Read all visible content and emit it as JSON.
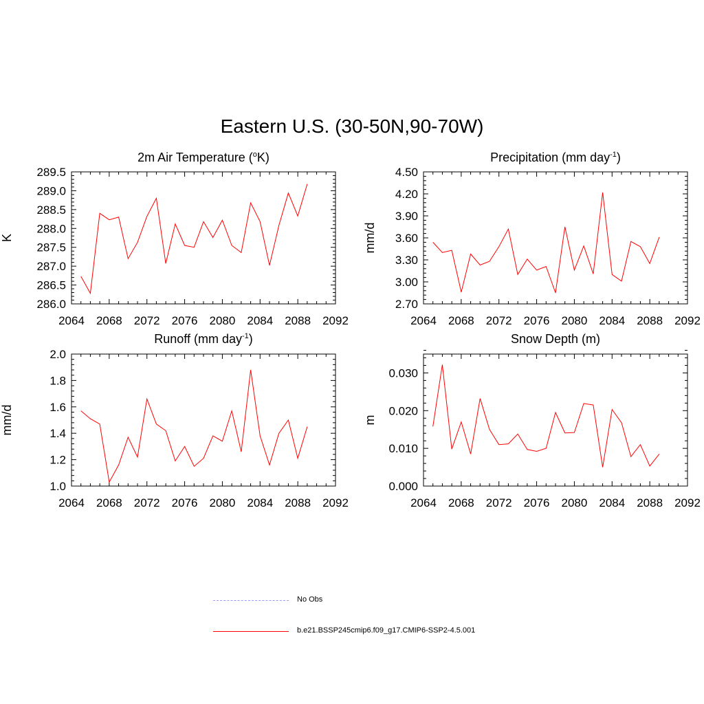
{
  "title": "Eastern U.S. (30-50N,90-70W)",
  "chart_data": [
    {
      "type": "line",
      "title": "2m Air Temperature (",
      "title_sup": "o",
      "title_after": "K)",
      "ylabel": "K",
      "xlim": [
        2064,
        2092
      ],
      "xticks": [
        "2064",
        "2068",
        "2072",
        "2076",
        "2080",
        "2084",
        "2088",
        "2092"
      ],
      "ylim": [
        286.0,
        289.5
      ],
      "yticks": [
        "286.0",
        "286.5",
        "287.0",
        "287.5",
        "288.0",
        "288.5",
        "289.0",
        "289.5"
      ],
      "x": [
        2065,
        2066,
        2067,
        2068,
        2069,
        2070,
        2071,
        2072,
        2073,
        2074,
        2075,
        2076,
        2077,
        2078,
        2079,
        2080,
        2081,
        2082,
        2083,
        2084,
        2085,
        2086,
        2087,
        2088,
        2089
      ],
      "series": [
        {
          "name": "b.e21.BSSP245cmip6.f09_g17.CMIP6-SSP2-4.5.001",
          "color": "#ff0000",
          "values": [
            286.73,
            286.28,
            288.4,
            288.23,
            288.3,
            287.2,
            287.63,
            288.32,
            288.8,
            287.07,
            288.12,
            287.55,
            287.5,
            288.18,
            287.76,
            288.22,
            287.55,
            287.36,
            288.68,
            288.18,
            287.02,
            288.08,
            288.94,
            288.33,
            289.18
          ]
        }
      ]
    },
    {
      "type": "line",
      "title": "Precipitation (mm day",
      "title_sup": "-1",
      "title_after": ")",
      "ylabel": "mm/d",
      "xlim": [
        2064,
        2092
      ],
      "xticks": [
        "2064",
        "2068",
        "2072",
        "2076",
        "2080",
        "2084",
        "2088",
        "2092"
      ],
      "ylim": [
        2.7,
        4.5
      ],
      "yticks": [
        "2.70",
        "3.00",
        "3.30",
        "3.60",
        "3.90",
        "4.20",
        "4.50"
      ],
      "x": [
        2065,
        2066,
        2067,
        2068,
        2069,
        2070,
        2071,
        2072,
        2073,
        2074,
        2075,
        2076,
        2077,
        2078,
        2079,
        2080,
        2081,
        2082,
        2083,
        2084,
        2085,
        2086,
        2087,
        2088,
        2089
      ],
      "series": [
        {
          "name": "b.e21.BSSP245cmip6.f09_g17.CMIP6-SSP2-4.5.001",
          "color": "#ff0000",
          "values": [
            3.54,
            3.4,
            3.43,
            2.86,
            3.38,
            3.23,
            3.28,
            3.48,
            3.72,
            3.1,
            3.31,
            3.16,
            3.21,
            2.85,
            3.75,
            3.16,
            3.49,
            3.11,
            4.22,
            3.1,
            3.01,
            3.55,
            3.48,
            3.25,
            3.61
          ]
        }
      ]
    },
    {
      "type": "line",
      "title": "Runoff (mm day",
      "title_sup": "-1",
      "title_after": ")",
      "ylabel": "mm/d",
      "xlim": [
        2064,
        2092
      ],
      "xticks": [
        "2064",
        "2068",
        "2072",
        "2076",
        "2080",
        "2084",
        "2088",
        "2092"
      ],
      "ylim": [
        1.0,
        2.0
      ],
      "yticks": [
        "1.0",
        "1.2",
        "1.4",
        "1.6",
        "1.8",
        "2.0"
      ],
      "x": [
        2065,
        2066,
        2067,
        2068,
        2069,
        2070,
        2071,
        2072,
        2073,
        2074,
        2075,
        2076,
        2077,
        2078,
        2079,
        2080,
        2081,
        2082,
        2083,
        2084,
        2085,
        2086,
        2087,
        2088,
        2089
      ],
      "series": [
        {
          "name": "b.e21.BSSP245cmip6.f09_g17.CMIP6-SSP2-4.5.001",
          "color": "#ff0000",
          "values": [
            1.57,
            1.51,
            1.47,
            1.03,
            1.16,
            1.37,
            1.22,
            1.66,
            1.47,
            1.42,
            1.19,
            1.3,
            1.15,
            1.21,
            1.38,
            1.34,
            1.57,
            1.26,
            1.88,
            1.38,
            1.16,
            1.4,
            1.5,
            1.21,
            1.45
          ]
        }
      ]
    },
    {
      "type": "line",
      "title": "Snow Depth (m)",
      "title_sup": "",
      "title_after": "",
      "ylabel": "m",
      "xlim": [
        2064,
        2092
      ],
      "xticks": [
        "2064",
        "2068",
        "2072",
        "2076",
        "2080",
        "2084",
        "2088",
        "2092"
      ],
      "ylim": [
        0.0,
        0.035
      ],
      "yticks": [
        "0.000",
        "0.010",
        "0.020",
        "0.030"
      ],
      "ytick_values": [
        0.0,
        0.01,
        0.02,
        0.03
      ],
      "x": [
        2065,
        2066,
        2067,
        2068,
        2069,
        2070,
        2071,
        2072,
        2073,
        2074,
        2075,
        2076,
        2077,
        2078,
        2079,
        2080,
        2081,
        2082,
        2083,
        2084,
        2085,
        2086,
        2087,
        2088,
        2089
      ],
      "series": [
        {
          "name": "b.e21.BSSP245cmip6.f09_g17.CMIP6-SSP2-4.5.001",
          "color": "#ff0000",
          "values": [
            0.0158,
            0.0322,
            0.0098,
            0.017,
            0.0085,
            0.0232,
            0.015,
            0.011,
            0.0112,
            0.0138,
            0.0097,
            0.0092,
            0.01,
            0.0195,
            0.0141,
            0.0142,
            0.0219,
            0.0215,
            0.005,
            0.0203,
            0.0168,
            0.0078,
            0.011,
            0.0053,
            0.0085
          ]
        }
      ]
    }
  ],
  "legend": {
    "items": [
      {
        "label": "No Obs",
        "color": "#9999ff",
        "style": "dashed"
      },
      {
        "label": "b.e21.BSSP245cmip6.f09_g17.CMIP6-SSP2-4.5.001",
        "color": "#ff0000",
        "style": "solid"
      }
    ]
  }
}
